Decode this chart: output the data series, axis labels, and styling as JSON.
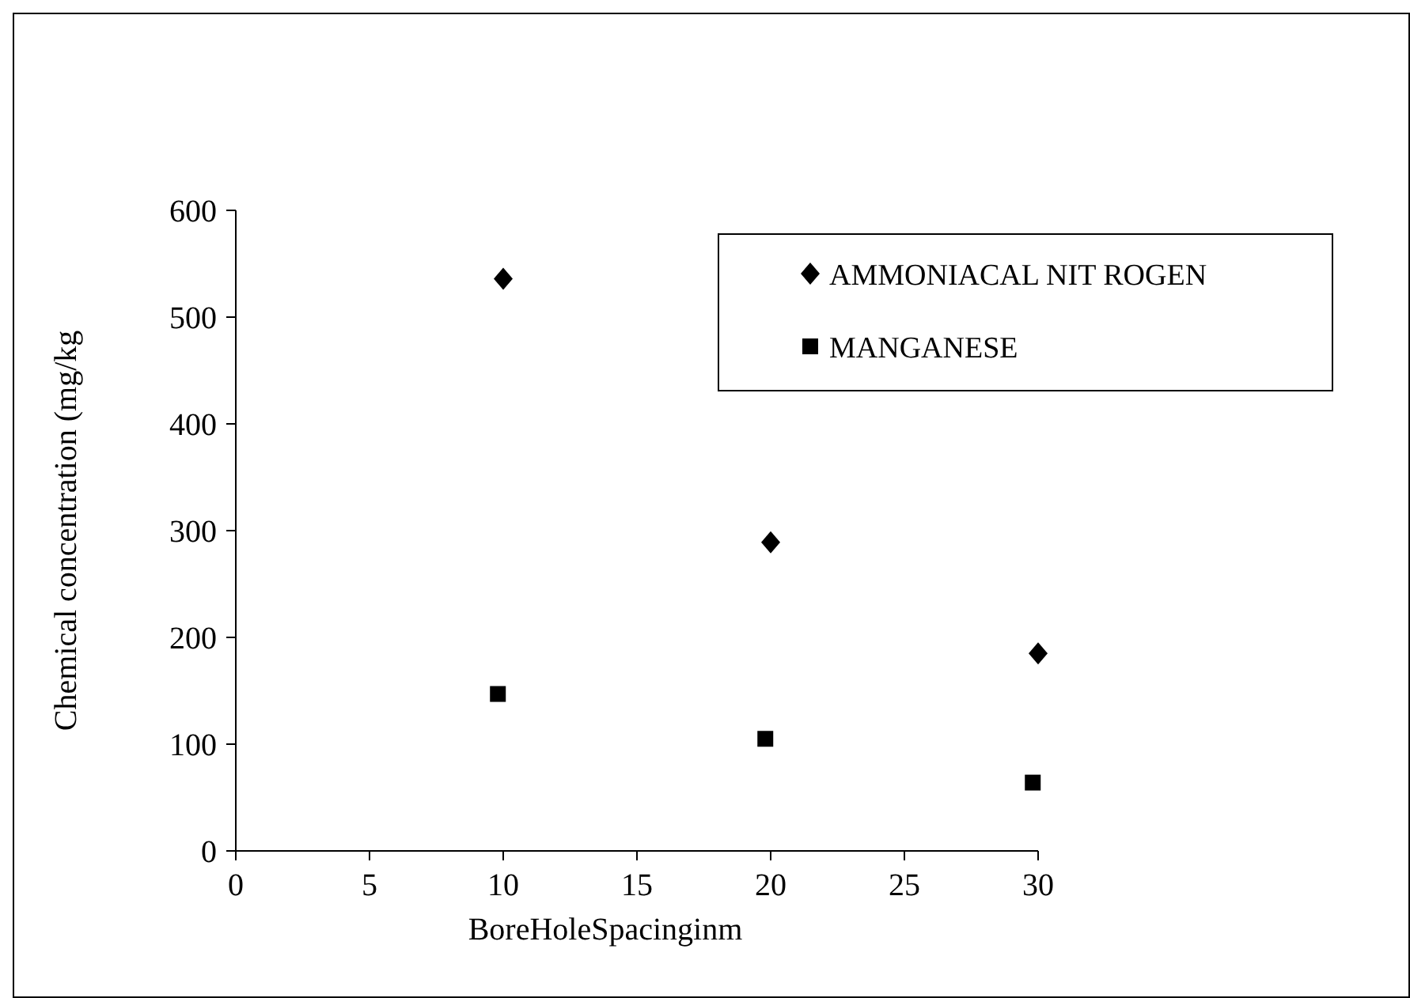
{
  "chart_data": {
    "type": "scatter",
    "xlabel": "BoreHoleSpacinginm",
    "ylabel": "Chemical concentration (mg/kg",
    "xlim": [
      0,
      30
    ],
    "xticks": [
      0,
      5,
      10,
      15,
      20,
      25,
      30
    ],
    "ylim": [
      0,
      600
    ],
    "yticks": [
      0,
      100,
      200,
      300,
      400,
      500,
      600
    ],
    "grid": false,
    "legend": "top right",
    "series": [
      {
        "name": "AMMONIACAL NIT ROGEN",
        "color": "#000000",
        "marker": "diamond",
        "x": [
          10,
          20,
          30
        ],
        "values": [
          536,
          289,
          185
        ]
      },
      {
        "name": "MANGANESE",
        "color": "#000000",
        "marker": "square",
        "x": [
          9.8,
          19.8,
          29.8
        ],
        "values": [
          147,
          105,
          64
        ]
      }
    ]
  }
}
